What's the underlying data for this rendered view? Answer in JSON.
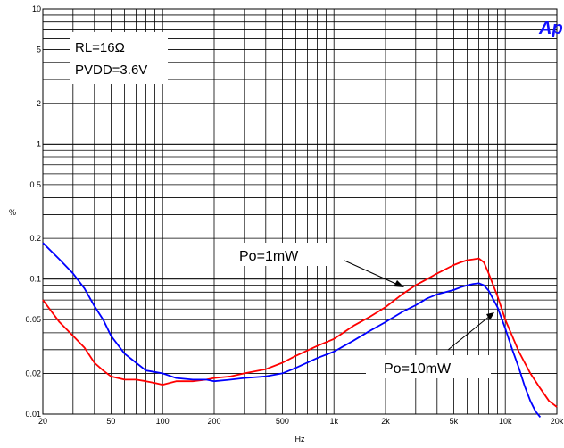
{
  "chart_data": {
    "type": "line",
    "xscale": "log",
    "yscale": "log",
    "xlim": [
      20,
      20000
    ],
    "ylim": [
      0.01,
      10
    ],
    "xlabel": "Hz",
    "ylabel": "%",
    "grid": true,
    "x_ticks": [
      {
        "value": 20,
        "label": "20"
      },
      {
        "value": 50,
        "label": "50"
      },
      {
        "value": 100,
        "label": "100"
      },
      {
        "value": 200,
        "label": "200"
      },
      {
        "value": 500,
        "label": "500"
      },
      {
        "value": 1000,
        "label": "1k"
      },
      {
        "value": 2000,
        "label": "2k"
      },
      {
        "value": 5000,
        "label": "5k"
      },
      {
        "value": 10000,
        "label": "10k"
      },
      {
        "value": 20000,
        "label": "20k"
      }
    ],
    "y_ticks": [
      {
        "value": 10,
        "label": "10"
      },
      {
        "value": 5,
        "label": "5"
      },
      {
        "value": 2,
        "label": "2"
      },
      {
        "value": 1,
        "label": "1"
      },
      {
        "value": 0.5,
        "label": "0.5"
      },
      {
        "value": 0.2,
        "label": "0.2"
      },
      {
        "value": 0.1,
        "label": "0.1"
      },
      {
        "value": 0.05,
        "label": "0.05"
      },
      {
        "value": 0.02,
        "label": "0.02"
      },
      {
        "value": 0.01,
        "label": "0.01"
      }
    ],
    "conditions": [
      "RL=16Ω",
      "PVDD=3.6V"
    ],
    "logo": "Ap",
    "series": [
      {
        "name": "Po=1mW",
        "color": "#ff0000",
        "x": [
          20,
          25,
          30,
          35,
          40,
          45,
          50,
          60,
          70,
          80,
          90,
          100,
          120,
          150,
          180,
          200,
          250,
          300,
          400,
          500,
          600,
          800,
          1000,
          1300,
          1600,
          2000,
          2500,
          3000,
          3500,
          4000,
          5000,
          5500,
          6000,
          6500,
          7000,
          7500,
          8000,
          9000,
          10000,
          12000,
          14000,
          16000,
          18000,
          20000
        ],
        "y": [
          0.07,
          0.048,
          0.038,
          0.031,
          0.024,
          0.021,
          0.019,
          0.018,
          0.018,
          0.0175,
          0.017,
          0.0165,
          0.0175,
          0.0175,
          0.018,
          0.0185,
          0.019,
          0.02,
          0.0215,
          0.024,
          0.027,
          0.032,
          0.036,
          0.045,
          0.052,
          0.062,
          0.077,
          0.09,
          0.1,
          0.11,
          0.127,
          0.133,
          0.138,
          0.14,
          0.142,
          0.133,
          0.11,
          0.075,
          0.05,
          0.029,
          0.02,
          0.0155,
          0.0125,
          0.0113
        ]
      },
      {
        "name": "Po=10mW",
        "color": "#0000ff",
        "x": [
          20,
          25,
          30,
          35,
          40,
          45,
          50,
          60,
          70,
          80,
          90,
          100,
          120,
          150,
          180,
          200,
          250,
          300,
          400,
          500,
          600,
          800,
          1000,
          1300,
          1600,
          2000,
          2500,
          3000,
          3500,
          4000,
          5000,
          5500,
          6000,
          6500,
          7000,
          7500,
          8000,
          9000,
          10000,
          11000,
          12000,
          13000,
          14000,
          15000,
          16000
        ],
        "y": [
          0.185,
          0.14,
          0.11,
          0.085,
          0.063,
          0.05,
          0.038,
          0.028,
          0.024,
          0.021,
          0.0205,
          0.02,
          0.0185,
          0.018,
          0.018,
          0.0175,
          0.018,
          0.0185,
          0.019,
          0.02,
          0.022,
          0.026,
          0.029,
          0.035,
          0.041,
          0.048,
          0.057,
          0.064,
          0.072,
          0.077,
          0.083,
          0.087,
          0.09,
          0.092,
          0.093,
          0.09,
          0.082,
          0.062,
          0.043,
          0.03,
          0.022,
          0.016,
          0.0125,
          0.0105,
          0.0095
        ]
      }
    ]
  }
}
